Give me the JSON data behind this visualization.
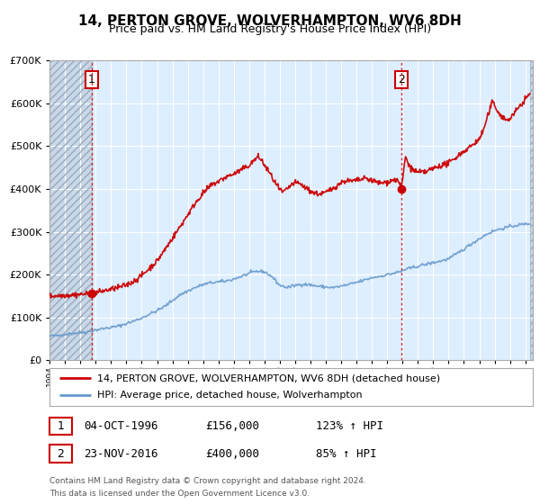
{
  "title": "14, PERTON GROVE, WOLVERHAMPTON, WV6 8DH",
  "subtitle": "Price paid vs. HM Land Registry's House Price Index (HPI)",
  "legend_line1": "14, PERTON GROVE, WOLVERHAMPTON, WV6 8DH (detached house)",
  "legend_line2": "HPI: Average price, detached house, Wolverhampton",
  "sale1_date": "04-OCT-1996",
  "sale1_price": "£156,000",
  "sale1_hpi": "123% ↑ HPI",
  "sale2_date": "23-NOV-2016",
  "sale2_price": "£400,000",
  "sale2_hpi": "85% ↑ HPI",
  "footer1": "Contains HM Land Registry data © Crown copyright and database right 2024.",
  "footer2": "This data is licensed under the Open Government Licence v3.0.",
  "sale1_x": 1996.75,
  "sale1_y": 156000,
  "sale2_x": 2016.9,
  "sale2_y": 400000,
  "red_color": "#cc0000",
  "blue_color": "#6699cc",
  "bg_color": "#ddeeff",
  "hatch_color": "#c8d8e8",
  "ylim": [
    0,
    700000
  ],
  "xlim_start": 1994.0,
  "xlim_end": 2025.5
}
